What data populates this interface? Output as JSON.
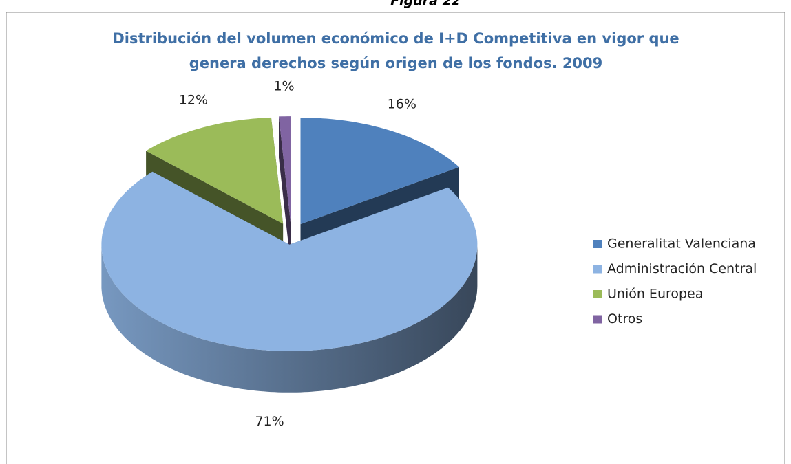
{
  "caption": "Figura 22",
  "chart_data": {
    "type": "pie",
    "title": [
      "Distribución del volumen económico de I+D Competitiva en vigor que",
      "genera derechos según origen de los fondos. 2009"
    ],
    "categories": [
      "Generalitat Valenciana",
      "Administración Central",
      "Unión Europea",
      "Otros"
    ],
    "values": [
      16,
      71,
      12,
      1
    ],
    "value_labels": [
      "16%",
      "71%",
      "12%",
      "1%"
    ],
    "colors": [
      "#4f81bd",
      "#8db3e2",
      "#9bbb59",
      "#8064a2"
    ],
    "legend": "right"
  }
}
